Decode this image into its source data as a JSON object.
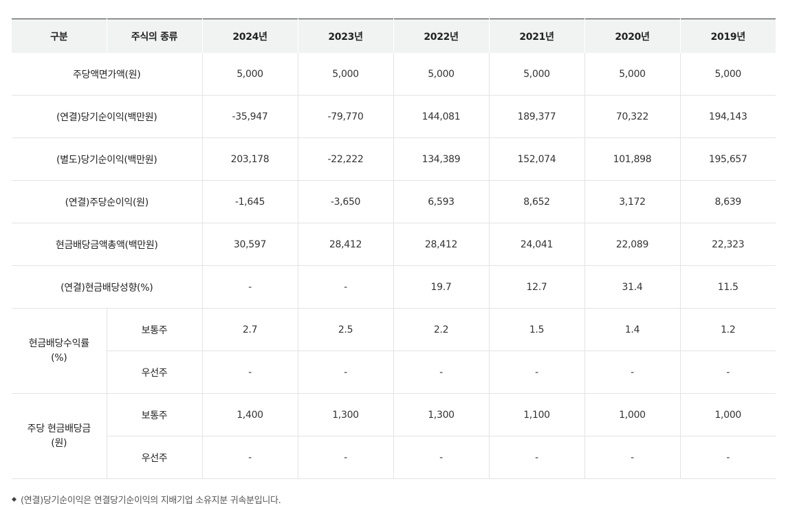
{
  "headers": [
    "구분",
    "주식의 종류",
    "2024년",
    "2023년",
    "2022년",
    "2021년",
    "2020년",
    "2019년"
  ],
  "rows": [
    {
      "label": "주당액면가액(원)",
      "values": [
        "5,000",
        "5,000",
        "5,000",
        "5,000",
        "5,000",
        "5,000"
      ]
    },
    {
      "label": "(연결)당기순이익(백만원)",
      "values": [
        "-35,947",
        "-79,770",
        "144,081",
        "189,377",
        "70,322",
        "194,143"
      ]
    },
    {
      "label": "(별도)당기순이익(백만원)",
      "values": [
        "203,178",
        "-22,222",
        "134,389",
        "152,074",
        "101,898",
        "195,657"
      ]
    },
    {
      "label": "(연결)주당순이익(원)",
      "values": [
        "-1,645",
        "-3,650",
        "6,593",
        "8,652",
        "3,172",
        "8,639"
      ]
    },
    {
      "label": "현금배당금액총액(백만원)",
      "values": [
        "30,597",
        "28,412",
        "28,412",
        "24,041",
        "22,089",
        "22,323"
      ]
    },
    {
      "label": "(연결)현금배당성향(%)",
      "values": [
        "-",
        "-",
        "19.7",
        "12.7",
        "31.4",
        "11.5"
      ]
    }
  ],
  "groups": [
    {
      "label_line1": "현금배당수익률",
      "label_line2": "(%)",
      "rows": [
        {
          "type": "보통주",
          "values": [
            "2.7",
            "2.5",
            "2.2",
            "1.5",
            "1.4",
            "1.2"
          ]
        },
        {
          "type": "우선주",
          "values": [
            "-",
            "-",
            "-",
            "-",
            "-",
            "-"
          ]
        }
      ]
    },
    {
      "label_line1": "주당 현금배당금",
      "label_line2": "(원)",
      "rows": [
        {
          "type": "보통주",
          "values": [
            "1,400",
            "1,300",
            "1,300",
            "1,100",
            "1,000",
            "1,000"
          ]
        },
        {
          "type": "우선주",
          "values": [
            "-",
            "-",
            "-",
            "-",
            "-",
            "-"
          ]
        }
      ]
    }
  ],
  "note": "(연결)당기순이익은 연결당기순이익의 지배기업 소유지분 귀속분입니다."
}
